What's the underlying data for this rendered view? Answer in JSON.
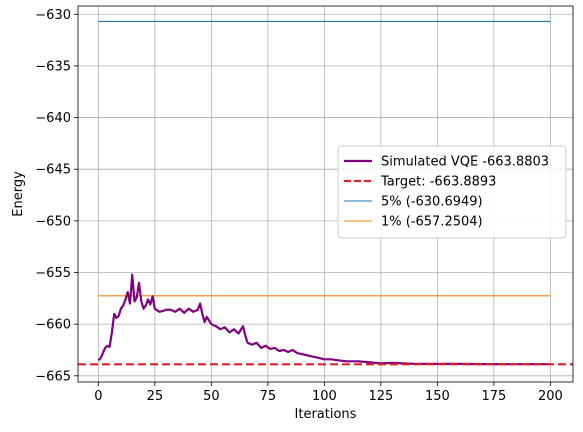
{
  "chart_data": {
    "type": "line",
    "xlabel": "Iterations",
    "ylabel": "Energy",
    "xlim": [
      -9,
      210
    ],
    "ylim": [
      -665.6,
      -629.2
    ],
    "xticks": [
      0,
      25,
      50,
      75,
      100,
      125,
      150,
      175,
      200
    ],
    "yticks": [
      -665,
      -660,
      -655,
      -650,
      -645,
      -640,
      -635,
      -630
    ],
    "xtick_labels": [
      "0",
      "25",
      "50",
      "75",
      "100",
      "125",
      "150",
      "175",
      "200"
    ],
    "ytick_labels": [
      "−665",
      "−660",
      "−655",
      "−650",
      "−645",
      "−640",
      "−635",
      "−630"
    ],
    "grid": true,
    "legend_placement": "center-right",
    "series": [
      {
        "name": "Simulated VQE -663.8803",
        "color": "#800080",
        "style": "solid",
        "x": [
          0,
          1,
          2,
          3,
          4,
          5,
          6,
          7,
          8,
          9,
          10,
          11,
          12,
          13,
          14,
          15,
          16,
          17,
          18,
          19,
          20,
          21,
          22,
          23,
          24,
          25,
          27,
          29,
          30,
          32,
          34,
          36,
          38,
          40,
          42,
          44,
          45,
          46,
          47,
          48,
          50,
          52,
          54,
          56,
          58,
          60,
          62,
          64,
          65,
          66,
          68,
          70,
          72,
          74,
          76,
          78,
          80,
          82,
          84,
          86,
          88,
          90,
          92,
          94,
          96,
          98,
          100,
          103,
          106,
          110,
          115,
          120,
          125,
          130,
          140,
          150,
          160,
          170,
          180,
          190,
          200
        ],
        "y": [
          -663.5,
          -663.3,
          -662.8,
          -662.3,
          -662.1,
          -662.2,
          -660.8,
          -659.0,
          -659.4,
          -659.2,
          -658.5,
          -658.2,
          -657.6,
          -656.9,
          -658.0,
          -655.2,
          -657.8,
          -657.4,
          -656.0,
          -657.8,
          -658.5,
          -658.2,
          -657.6,
          -658.1,
          -657.3,
          -658.5,
          -658.8,
          -658.7,
          -658.6,
          -658.6,
          -658.8,
          -658.5,
          -658.9,
          -658.5,
          -658.8,
          -658.6,
          -658.0,
          -659.0,
          -659.8,
          -659.3,
          -660.0,
          -660.2,
          -660.5,
          -660.3,
          -660.8,
          -660.5,
          -660.9,
          -660.2,
          -661.1,
          -661.8,
          -662.0,
          -661.8,
          -662.3,
          -662.1,
          -662.4,
          -662.3,
          -662.6,
          -662.5,
          -662.7,
          -662.5,
          -662.8,
          -662.9,
          -663.0,
          -663.1,
          -663.2,
          -663.3,
          -663.4,
          -663.4,
          -663.5,
          -663.6,
          -663.6,
          -663.7,
          -663.8,
          -663.75,
          -663.85,
          -663.85,
          -663.85,
          -663.87,
          -663.88,
          -663.88,
          -663.88
        ]
      },
      {
        "name": "Target: -663.8893",
        "color": "#d62728",
        "style": "dashed",
        "y_constant": -663.8893
      },
      {
        "name": "5% (-630.6949)",
        "color": "#1f77b4",
        "style": "solid",
        "x": [
          0,
          200
        ],
        "y": [
          -630.6949,
          -630.6949
        ]
      },
      {
        "name": "1% (-657.2504)",
        "color": "#ff7f0e",
        "style": "solid",
        "x": [
          0,
          200
        ],
        "y": [
          -657.2504,
          -657.2504
        ]
      }
    ]
  }
}
